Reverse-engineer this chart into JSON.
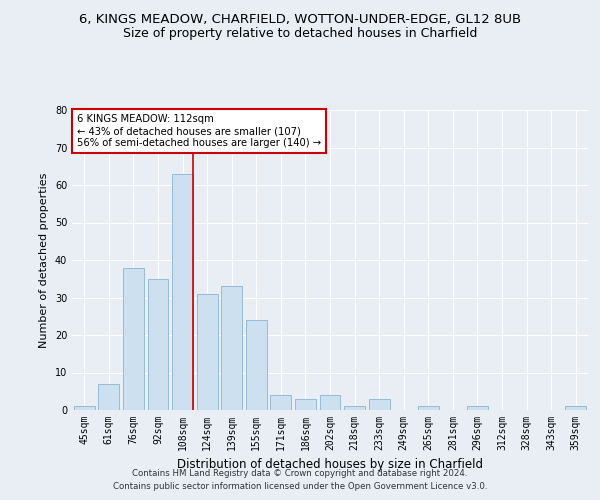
{
  "title": "6, KINGS MEADOW, CHARFIELD, WOTTON-UNDER-EDGE, GL12 8UB",
  "subtitle": "Size of property relative to detached houses in Charfield",
  "xlabel": "Distribution of detached houses by size in Charfield",
  "ylabel": "Number of detached properties",
  "categories": [
    "45sqm",
    "61sqm",
    "76sqm",
    "92sqm",
    "108sqm",
    "124sqm",
    "139sqm",
    "155sqm",
    "171sqm",
    "186sqm",
    "202sqm",
    "218sqm",
    "233sqm",
    "249sqm",
    "265sqm",
    "281sqm",
    "296sqm",
    "312sqm",
    "328sqm",
    "343sqm",
    "359sqm"
  ],
  "values": [
    1,
    7,
    38,
    35,
    63,
    31,
    33,
    24,
    4,
    3,
    4,
    1,
    3,
    0,
    1,
    0,
    1,
    0,
    0,
    0,
    1
  ],
  "bar_color": "#cce0f0",
  "bar_edge_color": "#8ab4d4",
  "ylim": [
    0,
    80
  ],
  "yticks": [
    0,
    10,
    20,
    30,
    40,
    50,
    60,
    70,
    80
  ],
  "property_label": "6 KINGS MEADOW: 112sqm",
  "annotation_line1": "← 43% of detached houses are smaller (107)",
  "annotation_line2": "56% of semi-detached houses are larger (140) →",
  "vline_x_index": 4,
  "vline_color": "#cc0000",
  "annotation_box_color": "#ffffff",
  "annotation_box_edge": "#cc0000",
  "footer1": "Contains HM Land Registry data © Crown copyright and database right 2024.",
  "footer2": "Contains public sector information licensed under the Open Government Licence v3.0.",
  "background_color": "#e8eef4",
  "grid_color": "#ffffff",
  "title_fontsize": 9.5,
  "subtitle_fontsize": 9,
  "tick_fontsize": 7,
  "ylabel_fontsize": 8,
  "xlabel_fontsize": 8.5
}
